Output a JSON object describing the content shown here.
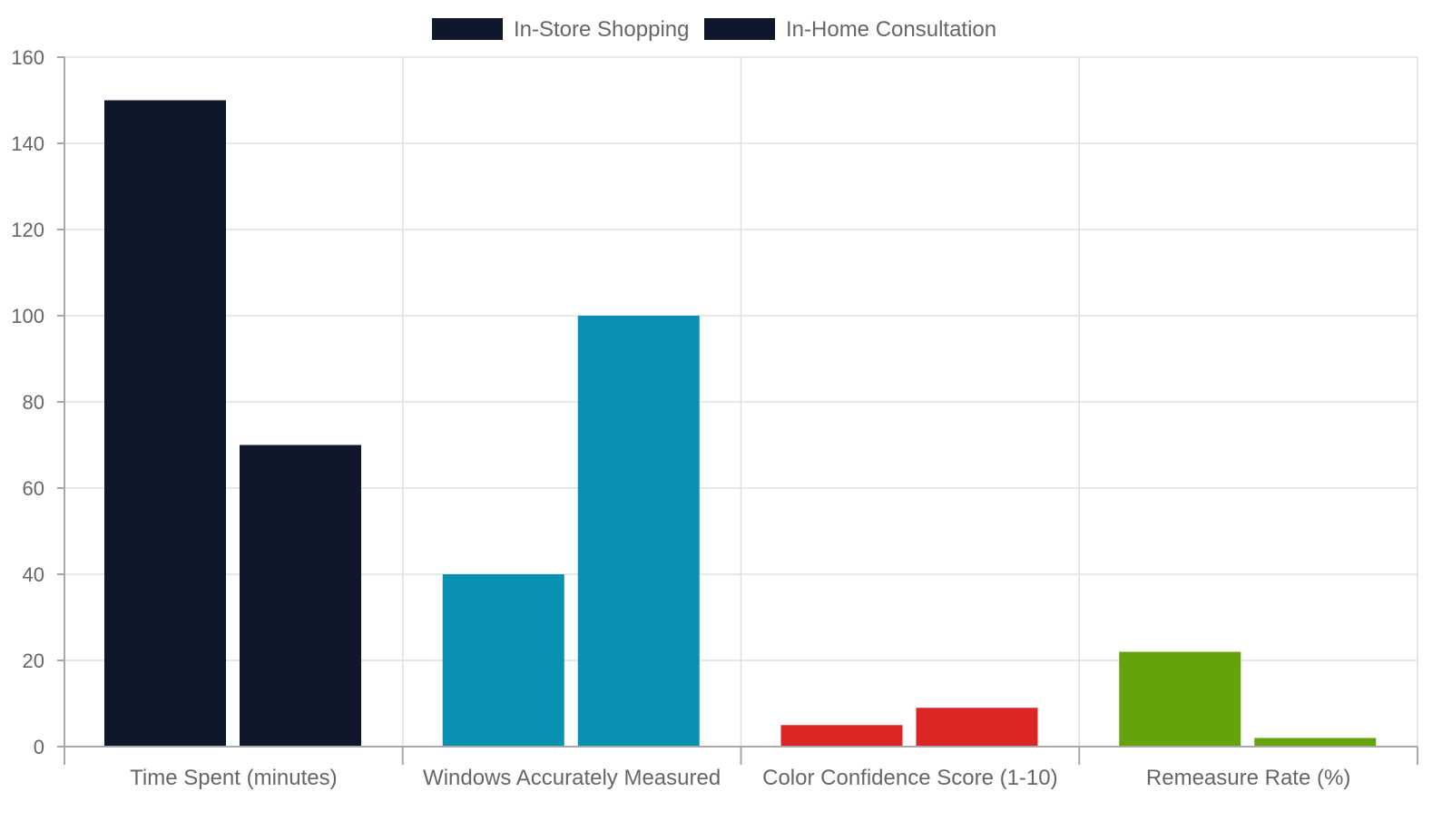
{
  "chart_data": {
    "type": "bar",
    "categories": [
      "Time Spent (minutes)",
      "Windows Accurately Measured",
      "Color Confidence Score (1-10)",
      "Remeasure Rate (%)"
    ],
    "series": [
      {
        "name": "In-Store Shopping",
        "values": [
          150,
          40,
          5,
          22
        ]
      },
      {
        "name": "In-Home Consultation",
        "values": [
          70,
          100,
          9,
          2
        ]
      }
    ],
    "category_colors": [
      "#0f172a",
      "#0891b2",
      "#dc2626",
      "#65a30d"
    ],
    "legend_color": "#0f172a",
    "ylim": [
      0,
      160
    ],
    "yticks": [
      0,
      20,
      40,
      60,
      80,
      100,
      120,
      140,
      160
    ],
    "grid": true,
    "legend_position": "top-center",
    "title": "",
    "xlabel": "",
    "ylabel": ""
  }
}
